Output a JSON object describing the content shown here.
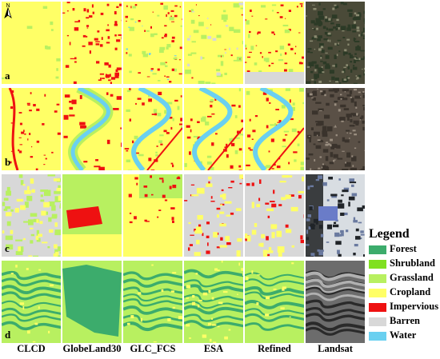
{
  "columns": [
    "CLCD",
    "GlobeLand30",
    "GLC_FCS",
    "ESA",
    "Refined",
    "Landsat"
  ],
  "rows": [
    "a",
    "b",
    "c",
    "d"
  ],
  "legend": {
    "title": "Legend",
    "items": [
      {
        "label": "Forest",
        "color": "#3cac6c"
      },
      {
        "label": "Shrubland",
        "color": "#80e020"
      },
      {
        "label": "Grassland",
        "color": "#b8f060"
      },
      {
        "label": "Cropland",
        "color": "#ffff66"
      },
      {
        "label": "Impervious",
        "color": "#ee1111"
      },
      {
        "label": "Barren",
        "color": "#d8d8d8"
      },
      {
        "label": "Water",
        "color": "#6ad0f0"
      }
    ]
  },
  "north_arrow": "N"
}
